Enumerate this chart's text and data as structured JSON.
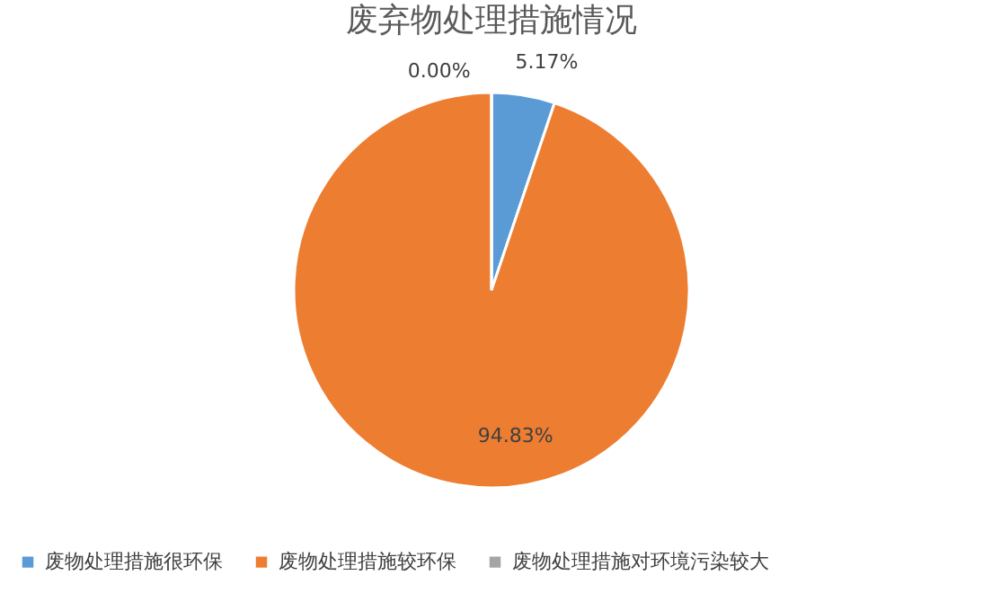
{
  "chart_data": {
    "type": "pie",
    "title": "废弃物处理措施情况",
    "categories": [
      "废物处理措施很环保",
      "废物处理措施较环保",
      "废物处理措施对环境污染较大"
    ],
    "values": [
      5.17,
      94.83,
      0.0
    ],
    "colors": [
      "#5b9bd5",
      "#ed7d31",
      "#a5a5a5"
    ],
    "value_labels": [
      "5.17%",
      "94.83%",
      "0.00%"
    ],
    "legend": "bottom"
  }
}
